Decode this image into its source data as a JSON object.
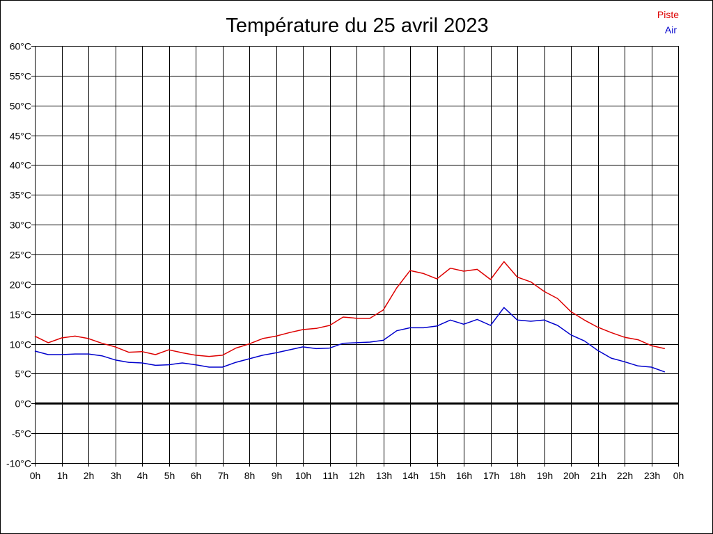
{
  "chart_data": {
    "type": "line",
    "title": "Température du 25 avril 2023",
    "xlabel": "",
    "ylabel": "",
    "ylim": [
      -10,
      60
    ],
    "xlim": [
      0,
      24
    ],
    "grid": true,
    "legend_placement": "top-right",
    "y_ticks": [
      "60°C",
      "55°C",
      "50°C",
      "45°C",
      "40°C",
      "35°C",
      "30°C",
      "25°C",
      "20°C",
      "15°C",
      "10°C",
      "5°C",
      "0°C",
      "-5°C",
      "-10°C"
    ],
    "y_tick_values": [
      60,
      55,
      50,
      45,
      40,
      35,
      30,
      25,
      20,
      15,
      10,
      5,
      0,
      -5,
      -10
    ],
    "x_ticks": [
      "0h",
      "1h",
      "2h",
      "3h",
      "4h",
      "5h",
      "6h",
      "7h",
      "8h",
      "9h",
      "10h",
      "11h",
      "12h",
      "13h",
      "14h",
      "15h",
      "16h",
      "17h",
      "18h",
      "19h",
      "20h",
      "21h",
      "22h",
      "23h",
      "0h"
    ],
    "x_tick_values": [
      0,
      1,
      2,
      3,
      4,
      5,
      6,
      7,
      8,
      9,
      10,
      11,
      12,
      13,
      14,
      15,
      16,
      17,
      18,
      19,
      20,
      21,
      22,
      23,
      24
    ],
    "x": [
      0,
      0.5,
      1,
      1.5,
      2,
      2.5,
      3,
      3.5,
      4,
      4.5,
      5,
      5.5,
      6,
      6.5,
      7,
      7.5,
      8,
      8.5,
      9,
      9.5,
      10,
      10.5,
      11,
      11.5,
      12,
      12.5,
      13,
      13.5,
      14,
      14.5,
      15,
      15.5,
      16,
      16.5,
      17,
      17.5,
      18,
      18.5,
      19,
      19.5,
      20,
      20.5,
      21,
      21.5,
      22,
      22.5,
      23,
      23.5
    ],
    "series": [
      {
        "name": "Piste",
        "color": "#dd0000",
        "values": [
          11.3,
          10.2,
          11.0,
          11.3,
          10.9,
          10.1,
          9.5,
          8.6,
          8.7,
          8.2,
          9.0,
          8.5,
          8.1,
          7.9,
          8.1,
          9.3,
          10.0,
          10.9,
          11.3,
          11.9,
          12.4,
          12.6,
          13.1,
          14.5,
          14.3,
          14.3,
          15.7,
          19.4,
          22.3,
          21.8,
          20.9,
          22.7,
          22.2,
          22.5,
          20.8,
          23.8,
          21.2,
          20.4,
          18.8,
          17.6,
          15.4,
          14.0,
          12.8,
          11.9,
          11.1,
          10.7,
          9.7,
          9.2
        ]
      },
      {
        "name": "Air",
        "color": "#0000cc",
        "values": [
          8.8,
          8.2,
          8.2,
          8.3,
          8.3,
          8.0,
          7.3,
          6.9,
          6.8,
          6.4,
          6.5,
          6.8,
          6.5,
          6.1,
          6.1,
          6.9,
          7.5,
          8.1,
          8.5,
          9.0,
          9.5,
          9.2,
          9.3,
          10.1,
          10.2,
          10.3,
          10.6,
          12.2,
          12.7,
          12.7,
          13.0,
          14.0,
          13.3,
          14.1,
          13.1,
          16.1,
          14.0,
          13.8,
          14.0,
          13.1,
          11.5,
          10.5,
          8.9,
          7.6,
          7.0,
          6.3,
          6.1,
          5.3
        ]
      }
    ],
    "zero_line_color": "#000000"
  }
}
